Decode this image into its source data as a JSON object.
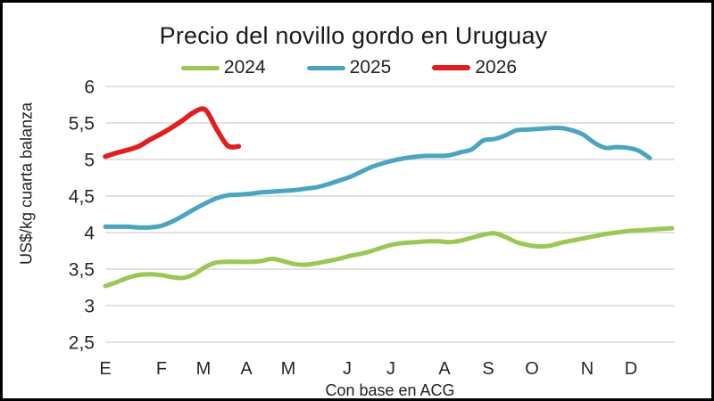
{
  "chart": {
    "title": "Precio del novillo gordo en Uruguay",
    "y_axis_title": "US$/kg cuarta balanza",
    "caption": "Con base en ACG",
    "colors": {
      "green": "#9CC755",
      "blue": "#4BA5C0",
      "red": "#E01F1F",
      "gridline": "#D9D9D9",
      "text": "#262626"
    }
  },
  "legend": [
    {
      "label": "2024",
      "color_key": "green"
    },
    {
      "label": "2025",
      "color_key": "blue"
    },
    {
      "label": "2026",
      "color_key": "red"
    }
  ],
  "chart_data": {
    "type": "line",
    "title": "Precio del novillo gordo en Uruguay",
    "ylabel": "US$/kg cuarta balanza",
    "xlabel": "Con base en ACG",
    "x_unit": "week_of_year",
    "x_range": [
      1,
      52
    ],
    "ylim": [
      2.5,
      6.0
    ],
    "grid": true,
    "legend_position": "top",
    "y_ticks": [
      "6",
      "5,5",
      "5",
      "4,5",
      "4",
      "3,5",
      "3",
      "2,5"
    ],
    "y_tick_values": [
      6,
      5.5,
      5,
      4.5,
      4,
      3.5,
      3,
      2.5
    ],
    "month_labels": [
      "E",
      "F",
      "M",
      "A",
      "M",
      "J",
      "J",
      "A",
      "S",
      "O",
      "N",
      "D"
    ],
    "series": [
      {
        "name": "2024",
        "color_key": "green",
        "start_week": 1,
        "values": [
          3.27,
          3.32,
          3.38,
          3.42,
          3.43,
          3.42,
          3.39,
          3.38,
          3.43,
          3.53,
          3.59,
          3.6,
          3.6,
          3.6,
          3.61,
          3.64,
          3.61,
          3.57,
          3.56,
          3.58,
          3.61,
          3.64,
          3.68,
          3.71,
          3.75,
          3.8,
          3.84,
          3.86,
          3.87,
          3.88,
          3.88,
          3.87,
          3.89,
          3.93,
          3.97,
          3.99,
          3.94,
          3.87,
          3.83,
          3.81,
          3.82,
          3.86,
          3.89,
          3.92,
          3.95,
          3.98,
          4.0,
          4.02,
          4.03,
          4.04,
          4.05,
          4.06
        ]
      },
      {
        "name": "2025",
        "color_key": "blue",
        "start_week": 1,
        "values": [
          4.08,
          4.08,
          4.08,
          4.07,
          4.07,
          4.09,
          4.15,
          4.23,
          4.32,
          4.4,
          4.47,
          4.51,
          4.52,
          4.53,
          4.55,
          4.56,
          4.57,
          4.58,
          4.6,
          4.62,
          4.66,
          4.71,
          4.76,
          4.83,
          4.9,
          4.95,
          4.99,
          5.02,
          5.04,
          5.05,
          5.05,
          5.06,
          5.1,
          5.14,
          5.26,
          5.28,
          5.33,
          5.4,
          5.41,
          5.42,
          5.43,
          5.43,
          5.4,
          5.34,
          5.23,
          5.16,
          5.17,
          5.16,
          5.12,
          5.02
        ]
      },
      {
        "name": "2026",
        "color_key": "red",
        "start_week": 1,
        "values": [
          5.04,
          5.09,
          5.13,
          5.18,
          5.27,
          5.35,
          5.44,
          5.54,
          5.65,
          5.68,
          5.42,
          5.19,
          5.18
        ]
      }
    ]
  }
}
